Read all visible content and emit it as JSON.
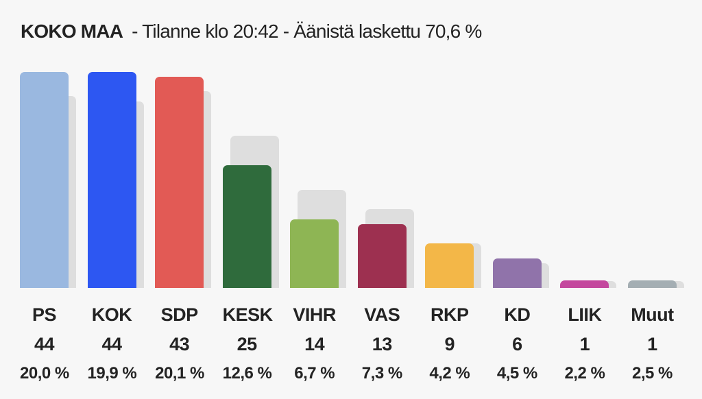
{
  "header": {
    "title_bold": "KOKO MAA",
    "title_rest": "- Tilanne klo 20:42 - Äänistä laskettu 70,6 %"
  },
  "colors": {
    "background": "#f7f7f7",
    "shadow_bar": "#dedede",
    "text": "#232323"
  },
  "chart_data": {
    "type": "bar",
    "title": "KOKO MAA - Tilanne klo 20:42 - Äänistä laskettu 70,6 %",
    "categories": [
      "PS",
      "KOK",
      "SDP",
      "KESK",
      "VIHR",
      "VAS",
      "RKP",
      "KD",
      "LIIK",
      "Muut"
    ],
    "series": [
      {
        "name": "seats",
        "values": [
          44,
          44,
          43,
          25,
          14,
          13,
          9,
          6,
          1,
          1
        ]
      },
      {
        "name": "comparison-shadow-seats",
        "values": [
          39,
          38,
          40,
          31,
          20,
          16,
          9,
          5,
          1,
          1
        ]
      }
    ],
    "seat_labels": [
      "44",
      "44",
      "43",
      "25",
      "14",
      "13",
      "9",
      "6",
      "1",
      "1"
    ],
    "percent_labels": [
      "20,0 %",
      "19,9 %",
      "20,1 %",
      "12,6 %",
      "6,7 %",
      "7,3 %",
      "4,2 %",
      "4,5 %",
      "2,2 %",
      "2,5 %"
    ],
    "bar_colors": [
      "#9ab8e0",
      "#2d57f2",
      "#e25a55",
      "#2f6b3c",
      "#8eb554",
      "#9d3050",
      "#f3b748",
      "#9073aa",
      "#c4489e",
      "#a4aeb3"
    ],
    "ylim": [
      0,
      47
    ],
    "legend_position": "none",
    "grid": false,
    "value_unit": "seats"
  }
}
